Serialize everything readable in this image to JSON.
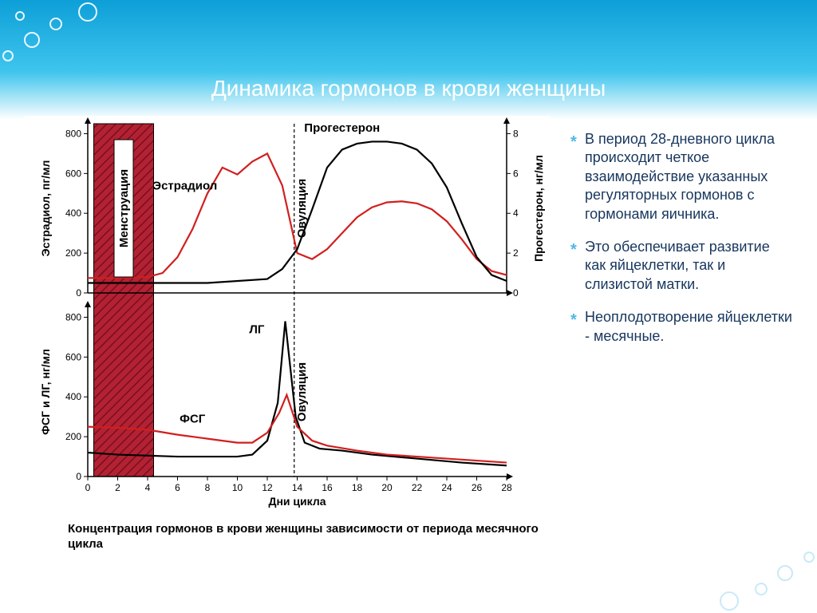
{
  "title": "Динамика гормонов в крови женщины",
  "caption": "Концентрация гормонов в крови женщины зависимости от периода месячного цикла",
  "bullets": [
    "В период 28-дневного цикла происходит четкое взаимодействие указанных регуляторных гормонов с гормонами яичника.",
    "Это обеспечивает развитие как яйцеклетки, так и слизистой матки.",
    "Неоплодотворение яйцеклетки - месячные."
  ],
  "colors": {
    "header_top": "#0d9fd8",
    "header_bottom": "#3fc5ed",
    "bullet_text": "#17365d",
    "bullet_marker": "#4fb8e5",
    "menstruation_fill": "#b22234",
    "menstruation_hatch": "#7a0e1a",
    "series_estradiol": "#d11f1f",
    "series_progesterone": "#000000",
    "series_LH": "#000000",
    "series_FSH": "#d11f1f",
    "axis": "#000000",
    "background": "#ffffff",
    "grid_light": "#cccccc"
  },
  "top_chart": {
    "type": "line",
    "x_domain": [
      0,
      28
    ],
    "left_axis": {
      "label": "Эстрадиол, пг/мл",
      "ticks": [
        0,
        200,
        400,
        600,
        800
      ],
      "ylim": [
        0,
        850
      ]
    },
    "right_axis": {
      "label": "Прогестерон, нг/мл",
      "ticks": [
        0,
        2,
        4,
        6,
        8
      ],
      "ylim": [
        0,
        8.5
      ]
    },
    "phase_labels": {
      "menstruation": "Менструация",
      "ovulation": "Овуляция"
    },
    "series": [
      {
        "name": "Эстрадиол",
        "label": "Эстрадиол",
        "color": "#d11f1f",
        "axis": "left",
        "points": [
          [
            0,
            75
          ],
          [
            2,
            75
          ],
          [
            4,
            80
          ],
          [
            5,
            100
          ],
          [
            6,
            180
          ],
          [
            7,
            320
          ],
          [
            8,
            500
          ],
          [
            9,
            630
          ],
          [
            10,
            595
          ],
          [
            11,
            660
          ],
          [
            12,
            700
          ],
          [
            13,
            540
          ],
          [
            14,
            200
          ],
          [
            15,
            170
          ],
          [
            16,
            220
          ],
          [
            17,
            300
          ],
          [
            18,
            380
          ],
          [
            19,
            430
          ],
          [
            20,
            455
          ],
          [
            21,
            460
          ],
          [
            22,
            450
          ],
          [
            23,
            420
          ],
          [
            24,
            360
          ],
          [
            25,
            270
          ],
          [
            26,
            170
          ],
          [
            27,
            110
          ],
          [
            28,
            90
          ]
        ]
      },
      {
        "name": "Прогестерон",
        "label": "Прогестерон",
        "color": "#000000",
        "axis": "right",
        "points": [
          [
            0,
            0.5
          ],
          [
            4,
            0.5
          ],
          [
            8,
            0.5
          ],
          [
            12,
            0.7
          ],
          [
            13,
            1.2
          ],
          [
            14,
            2.2
          ],
          [
            15,
            4.2
          ],
          [
            16,
            6.3
          ],
          [
            17,
            7.2
          ],
          [
            18,
            7.5
          ],
          [
            19,
            7.6
          ],
          [
            20,
            7.6
          ],
          [
            21,
            7.5
          ],
          [
            22,
            7.2
          ],
          [
            23,
            6.5
          ],
          [
            24,
            5.3
          ],
          [
            25,
            3.5
          ],
          [
            26,
            1.8
          ],
          [
            27,
            0.9
          ],
          [
            28,
            0.6
          ]
        ]
      }
    ],
    "label_positions": {
      "Эстрадиол": [
        6.5,
        520
      ],
      "Прогестерон": [
        17,
        8.1
      ]
    }
  },
  "bottom_chart": {
    "type": "line",
    "x_domain": [
      0,
      28
    ],
    "x_label": "Дни цикла",
    "x_ticks": [
      0,
      2,
      4,
      6,
      8,
      10,
      12,
      14,
      16,
      18,
      20,
      22,
      24,
      26,
      28
    ],
    "left_axis": {
      "label": "ФСГ и ЛГ, нг/мл",
      "ticks": [
        0,
        200,
        400,
        600,
        800
      ],
      "ylim": [
        0,
        850
      ]
    },
    "phase_label": "Овуляция",
    "series": [
      {
        "name": "ЛГ",
        "label": "ЛГ",
        "color": "#000000",
        "points": [
          [
            0,
            120
          ],
          [
            2,
            110
          ],
          [
            4,
            105
          ],
          [
            6,
            100
          ],
          [
            8,
            100
          ],
          [
            10,
            100
          ],
          [
            11,
            110
          ],
          [
            12,
            180
          ],
          [
            12.7,
            370
          ],
          [
            13.2,
            780
          ],
          [
            13.9,
            300
          ],
          [
            14.5,
            170
          ],
          [
            15.5,
            140
          ],
          [
            17,
            130
          ],
          [
            19,
            110
          ],
          [
            22,
            90
          ],
          [
            25,
            70
          ],
          [
            28,
            55
          ]
        ]
      },
      {
        "name": "ФСГ",
        "label": "ФСГ",
        "color": "#d11f1f",
        "points": [
          [
            0,
            250
          ],
          [
            2,
            245
          ],
          [
            4,
            235
          ],
          [
            6,
            210
          ],
          [
            8,
            190
          ],
          [
            10,
            170
          ],
          [
            11,
            170
          ],
          [
            12,
            220
          ],
          [
            12.8,
            320
          ],
          [
            13.3,
            410
          ],
          [
            14,
            250
          ],
          [
            15,
            180
          ],
          [
            16,
            155
          ],
          [
            18,
            130
          ],
          [
            20,
            110
          ],
          [
            22,
            100
          ],
          [
            24,
            90
          ],
          [
            26,
            80
          ],
          [
            28,
            70
          ]
        ]
      }
    ],
    "label_positions": {
      "ЛГ": [
        11.3,
        720
      ],
      "ФСГ": [
        7,
        270
      ]
    }
  },
  "menstruation_band": {
    "x_start": 0.4,
    "x_end": 4.4
  },
  "ovulation_line": {
    "x": 13.8
  },
  "line_width": 2.2
}
